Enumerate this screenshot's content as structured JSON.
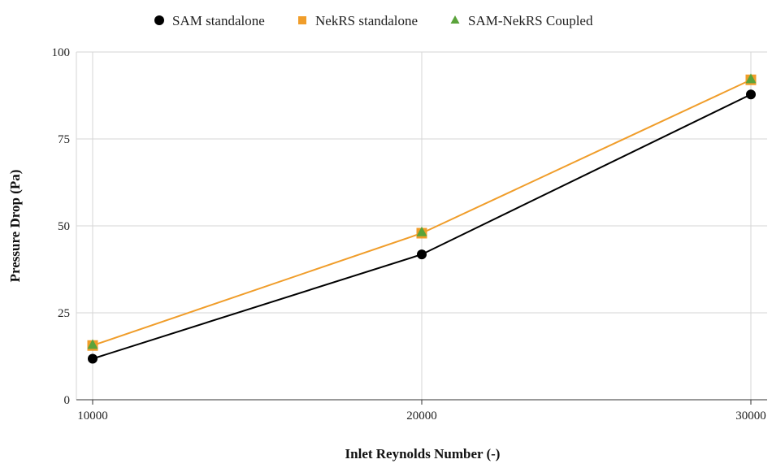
{
  "chart_data": {
    "type": "line",
    "title": "",
    "xlabel": "Inlet Reynolds Number (-)",
    "ylabel": "Pressure Drop (Pa)",
    "x": [
      10000,
      20000,
      30000
    ],
    "xlim": [
      10000,
      30000
    ],
    "ylim": [
      0,
      100
    ],
    "x_ticks": [
      "10000",
      "20000",
      "30000"
    ],
    "y_ticks": [
      "0",
      "25",
      "50",
      "75",
      "100"
    ],
    "grid": true,
    "legend_position": "top",
    "series": [
      {
        "name": "SAM standalone",
        "values": [
          11.8,
          41.8,
          87.8
        ],
        "color": "#000000",
        "marker": "circle",
        "line": true
      },
      {
        "name": "NekRS standalone",
        "values": [
          15.6,
          47.9,
          92.0
        ],
        "color": "#f09d2a",
        "marker": "square",
        "line": true
      },
      {
        "name": "SAM-NekRS Coupled",
        "values": [
          15.8,
          48.2,
          92.2
        ],
        "color": "#5aa33b",
        "marker": "triangle",
        "line": false
      }
    ]
  }
}
